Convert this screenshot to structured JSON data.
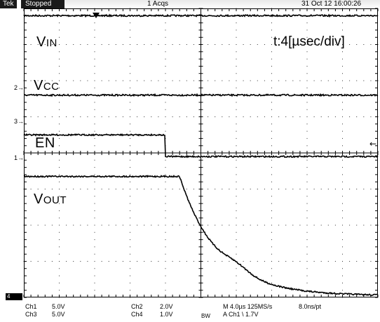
{
  "topbar": {
    "brand": "Tek",
    "status": "Stopped",
    "acquisitions": "1 Acqs",
    "datetime": "31 Oct 12 16:00:26"
  },
  "labels": {
    "vin_main": "V",
    "vin_sub": "IN",
    "vcc_main": "V",
    "vcc_sub": "CC",
    "en": "EN",
    "vout_main": "V",
    "vout_sub": "OUT",
    "timebase": "t:4[µsec/div]"
  },
  "markers": {
    "ch2": "2",
    "ch3": "3",
    "ch1": "1",
    "ch4": "4"
  },
  "readout": {
    "ch1_name": "Ch1",
    "ch1_scale": "5.0V",
    "ch3_name": "Ch3",
    "ch3_scale": "5.0V",
    "ch2_name": "Ch2",
    "ch2_scale": "2.0V",
    "ch4_name": "Ch4",
    "ch4_scale": "1.0V",
    "bw": "BW",
    "horizontal": "M 4.0µs 125MS/s",
    "resolution": "8.0ns/pt",
    "trigger": "A  Ch1  \\  1.7V"
  },
  "waveforms": {
    "time_per_div_us": 4,
    "divisions_x": 10,
    "divisions_y": 8,
    "vin_level_div": 7.8,
    "vcc_level_div": 5.6,
    "en_high_div": 4.5,
    "en_low_div": 3.9,
    "en_fall_div": 4.0,
    "vout_high_div": 3.35,
    "vout_low_div": 0.05,
    "vout_fall_start_div": 4.4
  }
}
